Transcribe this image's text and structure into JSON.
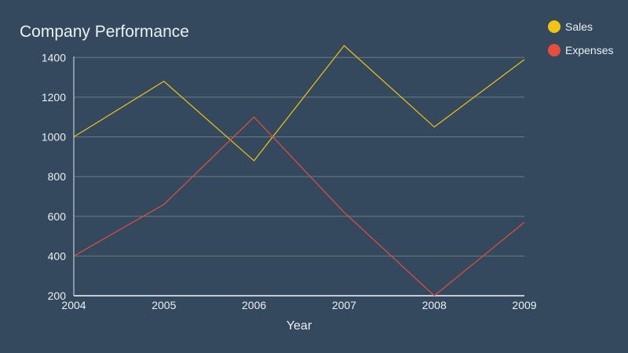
{
  "chart_data": {
    "type": "line",
    "title": "Company Performance",
    "xlabel": "Year",
    "ylabel": "",
    "x": [
      2004,
      2005,
      2006,
      2007,
      2008,
      2009
    ],
    "ylim": [
      200,
      1500
    ],
    "yticks": [
      200,
      400,
      600,
      800,
      1000,
      1200,
      1400
    ],
    "grid": true,
    "legend_position": "top-right",
    "series": [
      {
        "name": "Sales",
        "color": "#f1c40f",
        "values": [
          1000,
          1280,
          880,
          1460,
          1050,
          1390
        ]
      },
      {
        "name": "Expenses",
        "color": "#e74c3c",
        "values": [
          400,
          660,
          1100,
          620,
          200,
          570
        ]
      }
    ]
  },
  "colors": {
    "background": "#34495e",
    "grid": "#6b7b8a",
    "axis": "#c3ccd4",
    "text": "#ecf0f1"
  }
}
